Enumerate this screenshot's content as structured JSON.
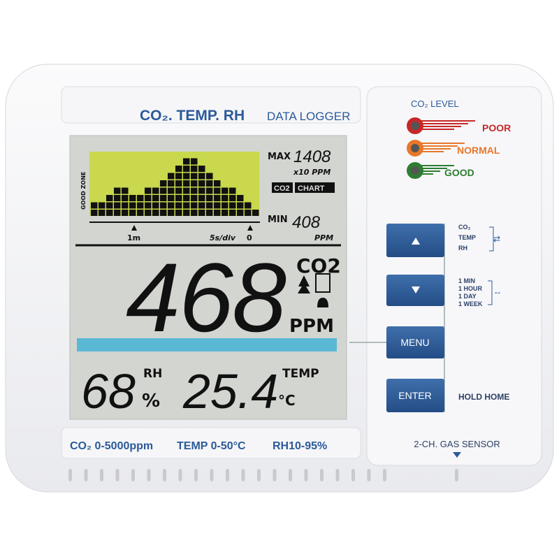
{
  "header": {
    "title": "CO₂. TEMP. RH",
    "subtitle": "DATA LOGGER"
  },
  "lcd": {
    "chart": {
      "zone_label": "GOOD ZONE",
      "columns": [
        2,
        2,
        3,
        4,
        4,
        3,
        3,
        4,
        4,
        5,
        6,
        7,
        8,
        8,
        7,
        6,
        5,
        4,
        4,
        3,
        2,
        1
      ],
      "max_label": "MAX",
      "max_value": "1408",
      "max_unit": "x10 PPM",
      "badge_gas": "CO2",
      "badge_chart": "CHART",
      "min_label": "MIN",
      "min_value": "408",
      "min_unit": "PPM",
      "axis_labels": [
        "1m",
        "5s/div",
        "0"
      ]
    },
    "co2": {
      "value": "468",
      "label": "CO2",
      "unit": "PPM"
    },
    "rh": {
      "value": "68",
      "label": "RH",
      "unit": "%"
    },
    "temp": {
      "value": "25.4",
      "label": "TEMP",
      "unit": "°C"
    }
  },
  "specs": [
    "CO₂ 0-5000ppm",
    "TEMP 0-50°C",
    "RH10-95%"
  ],
  "panel": {
    "level_title": "CO₂ LEVEL",
    "levels": [
      {
        "label": "POOR",
        "color": "#c62828"
      },
      {
        "label": "NORMAL",
        "color": "#e8772a"
      },
      {
        "label": "GOOD",
        "color": "#2e7d32"
      }
    ],
    "buttons": [
      "MENU",
      "ENTER"
    ],
    "up_options": [
      "CO₂",
      "TEMP",
      "RH"
    ],
    "down_options": [
      "1 MIN",
      "1 HOUR",
      "1 DAY",
      "1 WEEK"
    ],
    "enter_note": "HOLD HOME",
    "sensor": "2-CH. GAS SENSOR"
  }
}
